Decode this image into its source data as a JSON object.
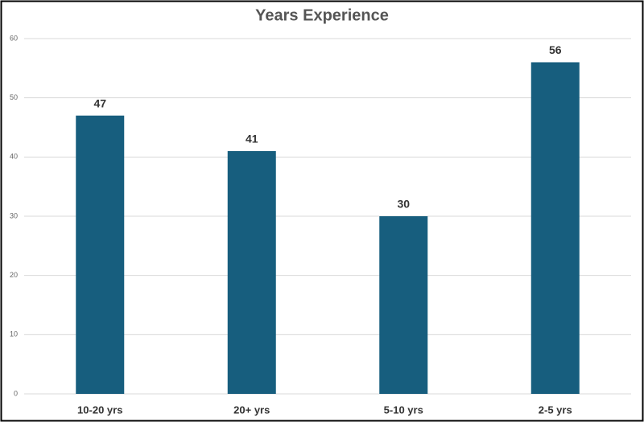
{
  "chart_data": {
    "type": "bar",
    "title": "Years Experience",
    "categories": [
      "10-20 yrs",
      "20+ yrs",
      "5-10 yrs",
      "2-5 yrs"
    ],
    "values": [
      47,
      41,
      30,
      56
    ],
    "color": "#175e7e",
    "ylim": [
      0,
      60
    ],
    "yticks": [
      0,
      10,
      20,
      30,
      40,
      50,
      60
    ],
    "grid": true,
    "data_labels": true
  }
}
